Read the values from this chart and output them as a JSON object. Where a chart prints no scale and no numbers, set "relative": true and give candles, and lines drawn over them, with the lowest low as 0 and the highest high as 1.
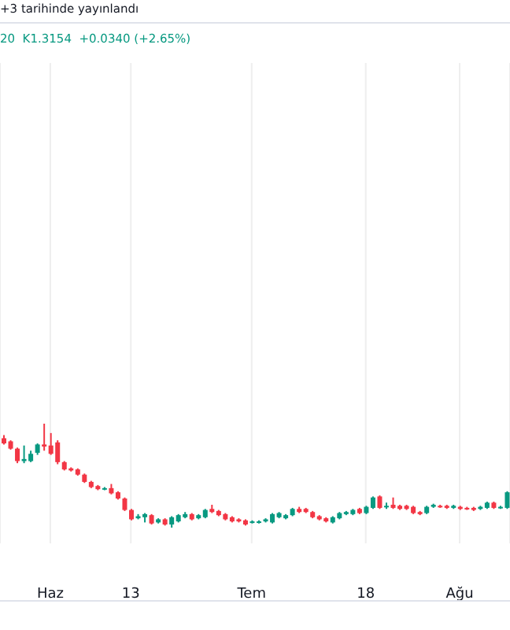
{
  "chart_data": {
    "type": "candlestick",
    "relative": true,
    "grid": "x",
    "annotations": [
      "+3 tarihinde yayınlandı",
      "20  K1.3154  +0.0340 (+2.65%)"
    ],
    "categories": [
      null,
      null,
      null,
      null,
      null,
      null,
      null,
      "Haz",
      null,
      null,
      null,
      null,
      null,
      null,
      null,
      null,
      null,
      null,
      null,
      "13",
      null,
      null,
      null,
      null,
      null,
      null,
      null,
      null,
      null,
      null,
      null,
      null,
      null,
      null,
      null,
      null,
      null,
      "Tem",
      null,
      null,
      null,
      null,
      null,
      null,
      null,
      null,
      null,
      null,
      null,
      null,
      null,
      null,
      null,
      null,
      "18",
      null,
      null,
      null,
      null,
      null,
      null,
      null,
      null,
      null,
      null,
      null,
      null,
      null,
      "Ağu",
      null,
      null,
      null,
      null,
      null,
      null,
      null
    ],
    "ohlc": [
      [
        0.86,
        0.89,
        0.8,
        0.81
      ],
      [
        0.83,
        0.84,
        0.75,
        0.76
      ],
      [
        0.76,
        0.77,
        0.62,
        0.64
      ],
      [
        0.64,
        0.79,
        0.62,
        0.66
      ],
      [
        0.64,
        0.74,
        0.63,
        0.71
      ],
      [
        0.72,
        0.81,
        0.7,
        0.8
      ],
      [
        0.8,
        1.0,
        0.74,
        0.78
      ],
      [
        0.79,
        0.91,
        0.7,
        0.71
      ],
      [
        0.82,
        0.84,
        0.61,
        0.63
      ],
      [
        0.63,
        0.64,
        0.55,
        0.56
      ],
      [
        0.57,
        0.58,
        0.54,
        0.55
      ],
      [
        0.56,
        0.57,
        0.5,
        0.51
      ],
      [
        0.51,
        0.52,
        0.43,
        0.44
      ],
      [
        0.44,
        0.45,
        0.38,
        0.39
      ],
      [
        0.4,
        0.41,
        0.36,
        0.37
      ],
      [
        0.37,
        0.39,
        0.36,
        0.38
      ],
      [
        0.38,
        0.42,
        0.32,
        0.33
      ],
      [
        0.34,
        0.35,
        0.27,
        0.28
      ],
      [
        0.28,
        0.29,
        0.16,
        0.17
      ],
      [
        0.17,
        0.18,
        0.07,
        0.08
      ],
      [
        0.09,
        0.13,
        0.08,
        0.11
      ],
      [
        0.1,
        0.14,
        0.05,
        0.13
      ],
      [
        0.12,
        0.13,
        0.03,
        0.04
      ],
      [
        0.05,
        0.09,
        0.04,
        0.08
      ],
      [
        0.08,
        0.09,
        0.02,
        0.03
      ],
      [
        0.03,
        0.11,
        0.0,
        0.1
      ],
      [
        0.06,
        0.13,
        0.05,
        0.12
      ],
      [
        0.1,
        0.15,
        0.09,
        0.13
      ],
      [
        0.13,
        0.14,
        0.07,
        0.08
      ],
      [
        0.09,
        0.13,
        0.08,
        0.12
      ],
      [
        0.1,
        0.18,
        0.09,
        0.17
      ],
      [
        0.18,
        0.22,
        0.14,
        0.15
      ],
      [
        0.16,
        0.17,
        0.11,
        0.12
      ],
      [
        0.13,
        0.14,
        0.07,
        0.08
      ],
      [
        0.1,
        0.11,
        0.05,
        0.06
      ],
      [
        0.08,
        0.09,
        0.05,
        0.06
      ],
      [
        0.07,
        0.08,
        0.02,
        0.03
      ],
      [
        0.05,
        0.07,
        0.04,
        0.06
      ],
      [
        0.05,
        0.07,
        0.04,
        0.06
      ],
      [
        0.06,
        0.09,
        0.05,
        0.08
      ],
      [
        0.05,
        0.14,
        0.04,
        0.13
      ],
      [
        0.1,
        0.15,
        0.09,
        0.14
      ],
      [
        0.09,
        0.13,
        0.08,
        0.12
      ],
      [
        0.12,
        0.19,
        0.11,
        0.18
      ],
      [
        0.18,
        0.2,
        0.14,
        0.15
      ],
      [
        0.18,
        0.19,
        0.14,
        0.15
      ],
      [
        0.15,
        0.16,
        0.09,
        0.1
      ],
      [
        0.11,
        0.12,
        0.07,
        0.08
      ],
      [
        0.09,
        0.1,
        0.05,
        0.06
      ],
      [
        0.05,
        0.11,
        0.04,
        0.1
      ],
      [
        0.09,
        0.15,
        0.08,
        0.14
      ],
      [
        0.13,
        0.16,
        0.12,
        0.15
      ],
      [
        0.13,
        0.18,
        0.12,
        0.17
      ],
      [
        0.18,
        0.19,
        0.13,
        0.14
      ],
      [
        0.14,
        0.21,
        0.13,
        0.2
      ],
      [
        0.19,
        0.3,
        0.18,
        0.29
      ],
      [
        0.3,
        0.31,
        0.18,
        0.19
      ],
      [
        0.2,
        0.24,
        0.18,
        0.21
      ],
      [
        0.22,
        0.29,
        0.18,
        0.19
      ],
      [
        0.21,
        0.22,
        0.17,
        0.18
      ],
      [
        0.21,
        0.22,
        0.17,
        0.18
      ],
      [
        0.2,
        0.21,
        0.13,
        0.14
      ],
      [
        0.15,
        0.16,
        0.12,
        0.13
      ],
      [
        0.14,
        0.21,
        0.13,
        0.2
      ],
      [
        0.2,
        0.23,
        0.19,
        0.22
      ],
      [
        0.21,
        0.22,
        0.19,
        0.2
      ],
      [
        0.21,
        0.22,
        0.18,
        0.19
      ],
      [
        0.19,
        0.22,
        0.18,
        0.21
      ],
      [
        0.2,
        0.21,
        0.17,
        0.18
      ],
      [
        0.19,
        0.2,
        0.17,
        0.18
      ],
      [
        0.19,
        0.2,
        0.16,
        0.17
      ],
      [
        0.18,
        0.21,
        0.17,
        0.2
      ],
      [
        0.19,
        0.25,
        0.18,
        0.24
      ],
      [
        0.24,
        0.25,
        0.18,
        0.19
      ],
      [
        0.19,
        0.21,
        0.18,
        0.2
      ],
      [
        0.19,
        0.35,
        0.18,
        0.34
      ]
    ],
    "colors": [
      "#f23645",
      "#f23645",
      "#f23645",
      "#089981",
      "#089981",
      "#089981",
      "#f23645",
      "#f23645",
      "#f23645",
      "#f23645",
      "#f23645",
      "#f23645",
      "#f23645",
      "#f23645",
      "#f23645",
      "#089981",
      "#f23645",
      "#f23645",
      "#f23645",
      "#f23645",
      "#089981",
      "#089981",
      "#f23645",
      "#089981",
      "#f23645",
      "#089981",
      "#089981",
      "#089981",
      "#f23645",
      "#089981",
      "#089981",
      "#f23645",
      "#f23645",
      "#f23645",
      "#f23645",
      "#f23645",
      "#f23645",
      "#089981",
      "#089981",
      "#089981",
      "#089981",
      "#089981",
      "#089981",
      "#089981",
      "#f23645",
      "#f23645",
      "#f23645",
      "#f23645",
      "#f23645",
      "#089981",
      "#089981",
      "#089981",
      "#089981",
      "#f23645",
      "#089981",
      "#089981",
      "#f23645",
      "#089981",
      "#f23645",
      "#f23645",
      "#f23645",
      "#f23645",
      "#f23645",
      "#089981",
      "#089981",
      "#f23645",
      "#f23645",
      "#089981",
      "#f23645",
      "#f23645",
      "#f23645",
      "#089981",
      "#089981",
      "#f23645",
      "#089981",
      "#089981"
    ]
  }
}
